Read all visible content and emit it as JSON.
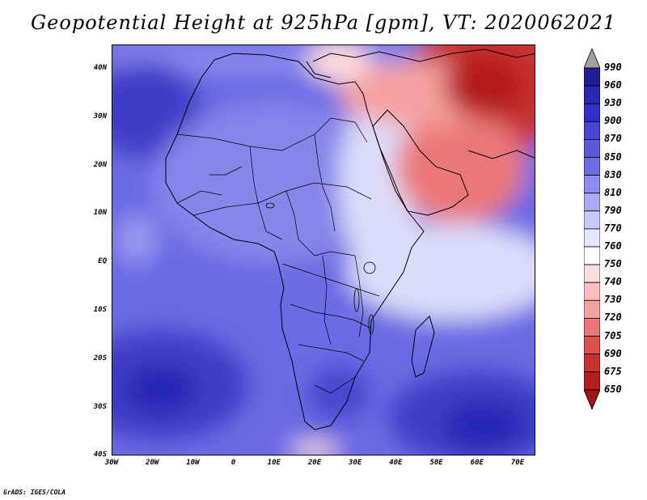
{
  "title": "Geopotential Height at 925hPa [gpm], VT: 2020062021",
  "credit": "GrADS: IGES/COLA",
  "y_ticks": [
    "40N",
    "30N",
    "20N",
    "10N",
    "EQ",
    "10S",
    "20S",
    "30S",
    "40S"
  ],
  "x_ticks": [
    "30W",
    "20W",
    "10W",
    "0",
    "10E",
    "20E",
    "30E",
    "40E",
    "50E",
    "60E",
    "70E"
  ],
  "colorbar": {
    "labels": [
      "990",
      "960",
      "930",
      "900",
      "870",
      "850",
      "830",
      "810",
      "790",
      "770",
      "760",
      "750",
      "740",
      "730",
      "720",
      "705",
      "690",
      "675",
      "650"
    ],
    "colors": [
      "#a0a0a0",
      "#1e1e96",
      "#2828b4",
      "#3232c8",
      "#4646d2",
      "#5a5adc",
      "#6e6ee6",
      "#8c8cf0",
      "#aaaaf5",
      "#c8c8fa",
      "#e6e6ff",
      "#ffffff",
      "#ffdcdc",
      "#ffbebe",
      "#f5a0a0",
      "#eb7878",
      "#dc5050",
      "#c83232",
      "#b41e1e",
      "#a01414"
    ]
  }
}
